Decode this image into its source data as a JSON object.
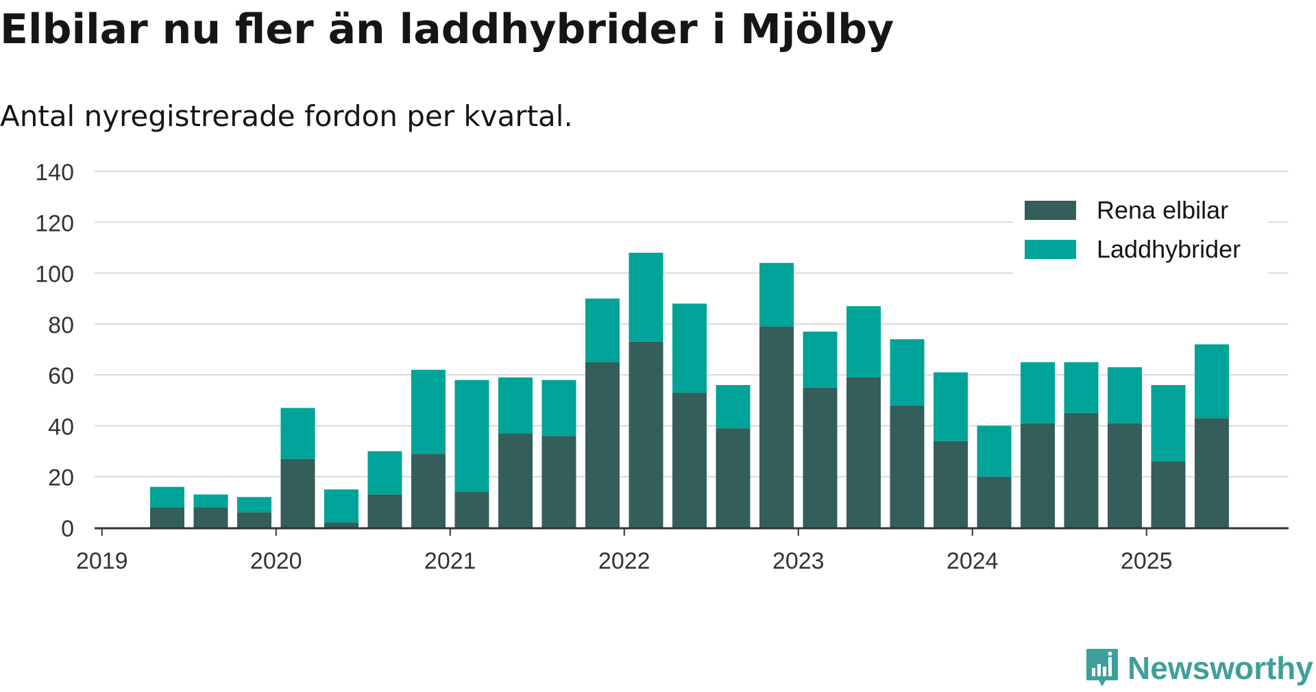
{
  "title": "Elbilar nu fler än laddhybrider i Mjölby",
  "subtitle": "Antal nyregistrerade fordon per kvartal.",
  "brand": {
    "name": "Newsworthy",
    "icon": "newsworthy-logo-icon",
    "color": "#3f9f9a"
  },
  "colors": {
    "electric": "#335e5a",
    "hybrid": "#00a398",
    "grid": "#d9d9d9",
    "axis": "#333333"
  },
  "chart_data": {
    "type": "bar",
    "stacked": true,
    "title": "Elbilar nu fler än laddhybrider i Mjölby",
    "subtitle": "Antal nyregistrerade fordon per kvartal.",
    "xlabel": "",
    "ylabel": "",
    "ylim": [
      0,
      140
    ],
    "yticks": [
      "0",
      "20",
      "40",
      "60",
      "80",
      "100",
      "120",
      "140"
    ],
    "xtick_labels": [
      "2019",
      "2020",
      "2021",
      "2022",
      "2023",
      "2024",
      "2025"
    ],
    "grid": true,
    "legend_position": "top-right",
    "categories": [
      "2019 Q2",
      "2019 Q3",
      "2019 Q4",
      "2020 Q1",
      "2020 Q2",
      "2020 Q3",
      "2020 Q4",
      "2021 Q1",
      "2021 Q2",
      "2021 Q3",
      "2021 Q4",
      "2022 Q1",
      "2022 Q2",
      "2022 Q3",
      "2022 Q4",
      "2023 Q1",
      "2023 Q2",
      "2023 Q3",
      "2023 Q4",
      "2024 Q1",
      "2024 Q2",
      "2024 Q3",
      "2024 Q4",
      "2025 Q1",
      "2025 Q2"
    ],
    "series": [
      {
        "name": "Rena elbilar",
        "color": "#335e5a",
        "values": [
          8,
          8,
          6,
          27,
          2,
          13,
          29,
          14,
          37,
          36,
          65,
          73,
          53,
          39,
          79,
          55,
          59,
          48,
          34,
          20,
          41,
          45,
          41,
          26,
          43
        ]
      },
      {
        "name": "Laddhybrider",
        "color": "#00a398",
        "values": [
          8,
          5,
          6,
          20,
          13,
          17,
          33,
          44,
          22,
          22,
          25,
          35,
          35,
          17,
          25,
          22,
          28,
          26,
          27,
          20,
          24,
          20,
          22,
          30,
          29
        ]
      }
    ]
  }
}
